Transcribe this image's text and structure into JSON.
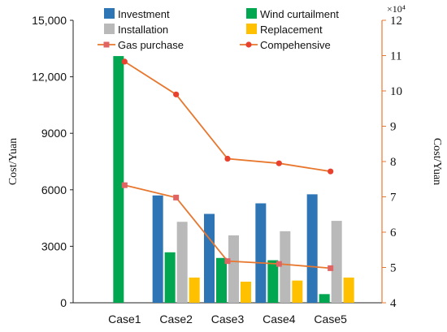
{
  "chart_data": {
    "type": "bar",
    "categories": [
      "Case1",
      "Case2",
      "Case3",
      "Case4",
      "Case5"
    ],
    "left_axis": {
      "label": "Cost/Yuan",
      "range": [
        0,
        15000
      ],
      "ticks": [
        0,
        3000,
        6000,
        9000,
        12000,
        15000
      ],
      "tick_labels": [
        "0",
        "3000",
        "6000",
        "9000",
        "12,000",
        "15,000"
      ]
    },
    "right_axis": {
      "label": "Cost/Yuan",
      "range": [
        4,
        12
      ],
      "ticks": [
        4,
        5,
        6,
        7,
        8,
        9,
        10,
        11,
        12
      ],
      "tick_labels": [
        "4",
        "5",
        "6",
        "7",
        "8",
        "9",
        "10",
        "11",
        "12"
      ],
      "exponent_label": "×10⁴",
      "color": "#e8772e"
    },
    "bar_series": [
      {
        "name": "Investment",
        "color": "#2e75b6",
        "values": [
          0,
          5700,
          4720,
          5280,
          5760
        ]
      },
      {
        "name": "Wind curtailment",
        "color": "#00a650",
        "values": [
          13100,
          2680,
          2380,
          2260,
          460
        ]
      },
      {
        "name": "Installation",
        "color": "#b9b9b9",
        "values": [
          0,
          4300,
          3580,
          3800,
          4350
        ]
      },
      {
        "name": "Replacement",
        "color": "#ffc000",
        "values": [
          0,
          1340,
          1120,
          1180,
          1340
        ]
      }
    ],
    "line_series": [
      {
        "name": "Gas purchase",
        "color": "#e8772e",
        "marker": "square",
        "marker_color": "#e06464",
        "axis": "right",
        "values": [
          7.33,
          6.98,
          5.18,
          5.1,
          4.98
        ]
      },
      {
        "name": "Compehensive",
        "color": "#e8772e",
        "marker": "circle",
        "marker_color": "#e8412e",
        "axis": "right",
        "values": [
          10.83,
          9.9,
          8.08,
          7.95,
          7.72
        ]
      }
    ],
    "legend_placement": "top",
    "grid": false
  }
}
